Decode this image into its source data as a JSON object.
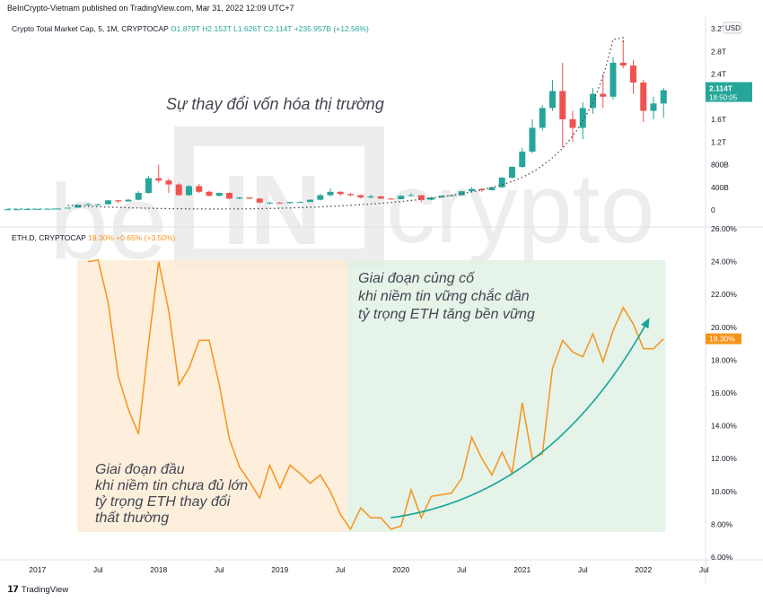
{
  "header": {
    "published": "BeInCrypto-Vietnam published on TradingView.com, Mar 31, 2022 12:09 UTC+7"
  },
  "footer": {
    "brand": "TradingView"
  },
  "colors": {
    "up": "#26a69a",
    "down": "#ef5350",
    "eth_line": "#f7931a",
    "trend_arrow": "#14a697",
    "box_early": "#fdebd3",
    "box_late": "#dff0e4",
    "dotted_curve": "#4a4a4a"
  },
  "watermark": "beIN crypto",
  "chart_data": [
    {
      "type": "candlestick",
      "symbol_label": "Crypto Total Market Cap, 5, 1M, CRYPTOCAP",
      "ohlc_text": {
        "o": "O1.879T",
        "h": "H2.153T",
        "l": "L1.626T",
        "c": "C2.114T",
        "chg": "+235.957B (+12.56%)"
      },
      "annotation": "Sự thay đổi vốn hóa thị trường",
      "price_tag": "2.114T",
      "countdown": "18:50:05",
      "currency": "USD",
      "y_ticks": [
        "3.2T",
        "2.8T",
        "2.4T",
        "2.0T",
        "1.6T",
        "1.2T",
        "800B",
        "400B",
        "0"
      ],
      "y_tick_values": [
        3.2,
        2.8,
        2.4,
        2.0,
        1.6,
        1.2,
        0.8,
        0.4,
        0
      ],
      "unit": "T (trillion USD)",
      "ylim": [
        0,
        3.3
      ],
      "candles": [
        {
          "t": "2016-10",
          "o": 0.012,
          "h": 0.013,
          "l": 0.011,
          "c": 0.012
        },
        {
          "t": "2016-11",
          "o": 0.012,
          "h": 0.013,
          "l": 0.011,
          "c": 0.012
        },
        {
          "t": "2016-12",
          "o": 0.012,
          "h": 0.015,
          "l": 0.012,
          "c": 0.015
        },
        {
          "t": "2017-01",
          "o": 0.015,
          "h": 0.02,
          "l": 0.014,
          "c": 0.018
        },
        {
          "t": "2017-02",
          "o": 0.018,
          "h": 0.022,
          "l": 0.017,
          "c": 0.021
        },
        {
          "t": "2017-03",
          "o": 0.021,
          "h": 0.028,
          "l": 0.019,
          "c": 0.025
        },
        {
          "t": "2017-04",
          "o": 0.025,
          "h": 0.04,
          "l": 0.025,
          "c": 0.04
        },
        {
          "t": "2017-05",
          "o": 0.04,
          "h": 0.1,
          "l": 0.04,
          "c": 0.09
        },
        {
          "t": "2017-06",
          "o": 0.09,
          "h": 0.12,
          "l": 0.08,
          "c": 0.1
        },
        {
          "t": "2017-07",
          "o": 0.1,
          "h": 0.11,
          "l": 0.07,
          "c": 0.1
        },
        {
          "t": "2017-08",
          "o": 0.1,
          "h": 0.17,
          "l": 0.1,
          "c": 0.17
        },
        {
          "t": "2017-09",
          "o": 0.17,
          "h": 0.18,
          "l": 0.12,
          "c": 0.15
        },
        {
          "t": "2017-10",
          "o": 0.15,
          "h": 0.19,
          "l": 0.15,
          "c": 0.18
        },
        {
          "t": "2017-11",
          "o": 0.18,
          "h": 0.33,
          "l": 0.17,
          "c": 0.3
        },
        {
          "t": "2017-12",
          "o": 0.3,
          "h": 0.6,
          "l": 0.29,
          "c": 0.56
        },
        {
          "t": "2018-01",
          "o": 0.56,
          "h": 0.8,
          "l": 0.48,
          "c": 0.52
        },
        {
          "t": "2018-02",
          "o": 0.52,
          "h": 0.55,
          "l": 0.3,
          "c": 0.45
        },
        {
          "t": "2018-03",
          "o": 0.45,
          "h": 0.47,
          "l": 0.25,
          "c": 0.26
        },
        {
          "t": "2018-04",
          "o": 0.26,
          "h": 0.44,
          "l": 0.25,
          "c": 0.42
        },
        {
          "t": "2018-05",
          "o": 0.42,
          "h": 0.46,
          "l": 0.3,
          "c": 0.32
        },
        {
          "t": "2018-06",
          "o": 0.32,
          "h": 0.34,
          "l": 0.24,
          "c": 0.25
        },
        {
          "t": "2018-07",
          "o": 0.25,
          "h": 0.31,
          "l": 0.24,
          "c": 0.3
        },
        {
          "t": "2018-08",
          "o": 0.3,
          "h": 0.31,
          "l": 0.19,
          "c": 0.2
        },
        {
          "t": "2018-09",
          "o": 0.2,
          "h": 0.23,
          "l": 0.19,
          "c": 0.22
        },
        {
          "t": "2018-10",
          "o": 0.22,
          "h": 0.22,
          "l": 0.2,
          "c": 0.2
        },
        {
          "t": "2018-11",
          "o": 0.2,
          "h": 0.21,
          "l": 0.12,
          "c": 0.13
        },
        {
          "t": "2018-12",
          "o": 0.13,
          "h": 0.14,
          "l": 0.1,
          "c": 0.13
        },
        {
          "t": "2019-01",
          "o": 0.13,
          "h": 0.14,
          "l": 0.11,
          "c": 0.12
        },
        {
          "t": "2019-02",
          "o": 0.12,
          "h": 0.14,
          "l": 0.11,
          "c": 0.14
        },
        {
          "t": "2019-03",
          "o": 0.14,
          "h": 0.15,
          "l": 0.13,
          "c": 0.14
        },
        {
          "t": "2019-04",
          "o": 0.14,
          "h": 0.19,
          "l": 0.14,
          "c": 0.18
        },
        {
          "t": "2019-05",
          "o": 0.18,
          "h": 0.28,
          "l": 0.17,
          "c": 0.26
        },
        {
          "t": "2019-06",
          "o": 0.26,
          "h": 0.38,
          "l": 0.24,
          "c": 0.32
        },
        {
          "t": "2019-07",
          "o": 0.32,
          "h": 0.33,
          "l": 0.25,
          "c": 0.28
        },
        {
          "t": "2019-08",
          "o": 0.28,
          "h": 0.3,
          "l": 0.24,
          "c": 0.26
        },
        {
          "t": "2019-09",
          "o": 0.26,
          "h": 0.27,
          "l": 0.2,
          "c": 0.22
        },
        {
          "t": "2019-10",
          "o": 0.22,
          "h": 0.27,
          "l": 0.2,
          "c": 0.24
        },
        {
          "t": "2019-11",
          "o": 0.24,
          "h": 0.25,
          "l": 0.19,
          "c": 0.2
        },
        {
          "t": "2019-12",
          "o": 0.2,
          "h": 0.21,
          "l": 0.18,
          "c": 0.19
        },
        {
          "t": "2020-01",
          "o": 0.19,
          "h": 0.26,
          "l": 0.19,
          "c": 0.25
        },
        {
          "t": "2020-02",
          "o": 0.25,
          "h": 0.3,
          "l": 0.24,
          "c": 0.26
        },
        {
          "t": "2020-03",
          "o": 0.26,
          "h": 0.26,
          "l": 0.13,
          "c": 0.18
        },
        {
          "t": "2020-04",
          "o": 0.18,
          "h": 0.23,
          "l": 0.17,
          "c": 0.22
        },
        {
          "t": "2020-05",
          "o": 0.22,
          "h": 0.26,
          "l": 0.21,
          "c": 0.25
        },
        {
          "t": "2020-06",
          "o": 0.25,
          "h": 0.27,
          "l": 0.24,
          "c": 0.26
        },
        {
          "t": "2020-07",
          "o": 0.26,
          "h": 0.34,
          "l": 0.25,
          "c": 0.33
        },
        {
          "t": "2020-08",
          "o": 0.33,
          "h": 0.4,
          "l": 0.32,
          "c": 0.37
        },
        {
          "t": "2020-09",
          "o": 0.37,
          "h": 0.38,
          "l": 0.32,
          "c": 0.35
        },
        {
          "t": "2020-10",
          "o": 0.35,
          "h": 0.41,
          "l": 0.34,
          "c": 0.4
        },
        {
          "t": "2020-11",
          "o": 0.4,
          "h": 0.58,
          "l": 0.39,
          "c": 0.57
        },
        {
          "t": "2020-12",
          "o": 0.57,
          "h": 0.77,
          "l": 0.55,
          "c": 0.76
        },
        {
          "t": "2021-01",
          "o": 0.76,
          "h": 1.1,
          "l": 0.74,
          "c": 1.03
        },
        {
          "t": "2021-02",
          "o": 1.03,
          "h": 1.6,
          "l": 1.0,
          "c": 1.45
        },
        {
          "t": "2021-03",
          "o": 1.45,
          "h": 1.85,
          "l": 1.4,
          "c": 1.8
        },
        {
          "t": "2021-04",
          "o": 1.8,
          "h": 2.3,
          "l": 1.75,
          "c": 2.1
        },
        {
          "t": "2021-05",
          "o": 2.1,
          "h": 2.6,
          "l": 1.1,
          "c": 1.6
        },
        {
          "t": "2021-06",
          "o": 1.6,
          "h": 1.75,
          "l": 1.2,
          "c": 1.45
        },
        {
          "t": "2021-07",
          "o": 1.45,
          "h": 1.9,
          "l": 1.25,
          "c": 1.8
        },
        {
          "t": "2021-08",
          "o": 1.8,
          "h": 2.15,
          "l": 1.7,
          "c": 2.05
        },
        {
          "t": "2021-09",
          "o": 2.05,
          "h": 2.4,
          "l": 1.8,
          "c": 2.0
        },
        {
          "t": "2021-10",
          "o": 2.0,
          "h": 2.7,
          "l": 1.95,
          "c": 2.6
        },
        {
          "t": "2021-11",
          "o": 2.6,
          "h": 3.0,
          "l": 2.5,
          "c": 2.55
        },
        {
          "t": "2021-12",
          "o": 2.55,
          "h": 2.65,
          "l": 2.05,
          "c": 2.25
        },
        {
          "t": "2022-01",
          "o": 2.25,
          "h": 2.3,
          "l": 1.55,
          "c": 1.75
        },
        {
          "t": "2022-02",
          "o": 1.75,
          "h": 2.0,
          "l": 1.6,
          "c": 1.88
        },
        {
          "t": "2022-03",
          "o": 1.879,
          "h": 2.153,
          "l": 1.626,
          "c": 2.114
        }
      ]
    },
    {
      "type": "line",
      "symbol_label": "ETH.D, CRYPTOCAP",
      "value_text": "19.30%",
      "chg_text": "+0.65% (+3.50%)",
      "price_tag": "19.30%",
      "y_ticks": [
        "26.00%",
        "24.00%",
        "22.00%",
        "20.00%",
        "18.00%",
        "16.00%",
        "14.00%",
        "12.00%",
        "10.00%",
        "8.00%",
        "6.00%"
      ],
      "y_tick_values": [
        26,
        24,
        22,
        20,
        18,
        16,
        14,
        12,
        10,
        8,
        6
      ],
      "ylim": [
        6,
        26
      ],
      "annotations": [
        {
          "lines": [
            "Giai đoạn củng cố",
            "khi niềm tin vững chắc dần",
            "tỷ trọng ETH tăng bền vững"
          ]
        },
        {
          "lines": [
            "Giai đoạn đầu",
            "khi niềm tin chưa đủ lớn",
            "tỷ trọng ETH thay đổi",
            "thất thường"
          ]
        }
      ],
      "regions": [
        {
          "name": "early-phase",
          "from": "2017-06",
          "to": "2019-08"
        },
        {
          "name": "consolidation-phase",
          "from": "2019-08",
          "to": "2022-03"
        }
      ],
      "trend_arrow": {
        "from": {
          "t": "2019-12",
          "v": 8.4
        },
        "to": {
          "t": "2022-01",
          "v": 20.5
        }
      },
      "series": [
        {
          "points": [
            {
              "t": "2017-06",
              "v": 24.0
            },
            {
              "t": "2017-07",
              "v": 24.1
            },
            {
              "t": "2017-08",
              "v": 21.5
            },
            {
              "t": "2017-09",
              "v": 17.0
            },
            {
              "t": "2017-10",
              "v": 15.0
            },
            {
              "t": "2017-11",
              "v": 13.5
            },
            {
              "t": "2017-12",
              "v": 19.0
            },
            {
              "t": "2018-01",
              "v": 24.0
            },
            {
              "t": "2018-02",
              "v": 21.0
            },
            {
              "t": "2018-03",
              "v": 16.5
            },
            {
              "t": "2018-04",
              "v": 17.5
            },
            {
              "t": "2018-05",
              "v": 19.2
            },
            {
              "t": "2018-06",
              "v": 19.2
            },
            {
              "t": "2018-07",
              "v": 16.5
            },
            {
              "t": "2018-08",
              "v": 13.2
            },
            {
              "t": "2018-09",
              "v": 11.5
            },
            {
              "t": "2018-10",
              "v": 10.6
            },
            {
              "t": "2018-11",
              "v": 9.6
            },
            {
              "t": "2018-12",
              "v": 11.6
            },
            {
              "t": "2019-01",
              "v": 10.2
            },
            {
              "t": "2019-02",
              "v": 11.6
            },
            {
              "t": "2019-03",
              "v": 11.1
            },
            {
              "t": "2019-04",
              "v": 10.5
            },
            {
              "t": "2019-05",
              "v": 11.0
            },
            {
              "t": "2019-06",
              "v": 10.0
            },
            {
              "t": "2019-07",
              "v": 8.6
            },
            {
              "t": "2019-08",
              "v": 7.7
            },
            {
              "t": "2019-09",
              "v": 9.0
            },
            {
              "t": "2019-10",
              "v": 8.4
            },
            {
              "t": "2019-11",
              "v": 8.4
            },
            {
              "t": "2019-12",
              "v": 7.7
            },
            {
              "t": "2020-01",
              "v": 7.9
            },
            {
              "t": "2020-02",
              "v": 10.1
            },
            {
              "t": "2020-03",
              "v": 8.4
            },
            {
              "t": "2020-04",
              "v": 9.7
            },
            {
              "t": "2020-05",
              "v": 9.8
            },
            {
              "t": "2020-06",
              "v": 9.9
            },
            {
              "t": "2020-07",
              "v": 10.8
            },
            {
              "t": "2020-08",
              "v": 13.3
            },
            {
              "t": "2020-09",
              "v": 12.0
            },
            {
              "t": "2020-10",
              "v": 11.0
            },
            {
              "t": "2020-11",
              "v": 12.4
            },
            {
              "t": "2020-12",
              "v": 11.1
            },
            {
              "t": "2021-01",
              "v": 15.4
            },
            {
              "t": "2021-02",
              "v": 12.0
            },
            {
              "t": "2021-03",
              "v": 12.3
            },
            {
              "t": "2021-04",
              "v": 17.5
            },
            {
              "t": "2021-05",
              "v": 19.2
            },
            {
              "t": "2021-06",
              "v": 18.5
            },
            {
              "t": "2021-07",
              "v": 18.2
            },
            {
              "t": "2021-08",
              "v": 19.6
            },
            {
              "t": "2021-09",
              "v": 17.9
            },
            {
              "t": "2021-10",
              "v": 19.8
            },
            {
              "t": "2021-11",
              "v": 21.2
            },
            {
              "t": "2021-12",
              "v": 20.2
            },
            {
              "t": "2022-01",
              "v": 18.7
            },
            {
              "t": "2022-02",
              "v": 18.7
            },
            {
              "t": "2022-03",
              "v": 19.3
            }
          ]
        }
      ]
    }
  ],
  "x_axis": {
    "ticks": [
      {
        "label": "2017",
        "t": "2017-01"
      },
      {
        "label": "Jul",
        "t": "2017-07"
      },
      {
        "label": "2018",
        "t": "2018-01"
      },
      {
        "label": "Jul",
        "t": "2018-07"
      },
      {
        "label": "2019",
        "t": "2019-01"
      },
      {
        "label": "Jul",
        "t": "2019-07"
      },
      {
        "label": "2020",
        "t": "2020-01"
      },
      {
        "label": "Jul",
        "t": "2020-07"
      },
      {
        "label": "2021",
        "t": "2021-01"
      },
      {
        "label": "Jul",
        "t": "2021-07"
      },
      {
        "label": "2022",
        "t": "2022-01"
      },
      {
        "label": "Jul",
        "t": "2022-07"
      }
    ]
  }
}
